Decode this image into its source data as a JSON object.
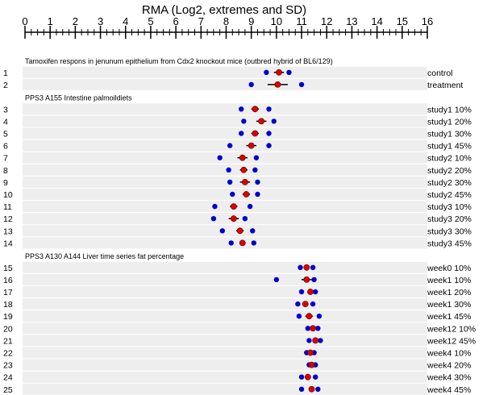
{
  "chart_data": {
    "type": "scatter",
    "title": "RMA (Log2, extremes and SD)",
    "xlim": [
      0,
      16
    ],
    "xticks": [
      "0",
      "1",
      "2",
      "3",
      "4",
      "5",
      "6",
      "7",
      "8",
      "9",
      "10",
      "11",
      "12",
      "13",
      "14",
      "15",
      "16"
    ],
    "colors": {
      "extreme": "#0000cc",
      "mean": "#dd0000",
      "band": "#eeeeee"
    },
    "groups": [
      {
        "title": "Tamoxifen respons in jenunum epithelium from Cdx2 knockout mice (outbred hybrid of BL6/129)",
        "rows": [
          {
            "num": "1",
            "label": "control",
            "min": 9.6,
            "max": 10.5,
            "mean": 10.1,
            "sd": 0.2
          },
          {
            "num": "2",
            "label": "treatment",
            "min": 9.0,
            "max": 11.0,
            "mean": 10.05,
            "sd": 0.4
          }
        ]
      },
      {
        "title": "PPS3 A155 Intestine palmoildiets",
        "rows": [
          {
            "num": "3",
            "label": "study1 10%",
            "min": 8.6,
            "max": 9.7,
            "mean": 9.15,
            "sd": 0.15
          },
          {
            "num": "4",
            "label": "study1 20%",
            "min": 8.7,
            "max": 9.9,
            "mean": 9.4,
            "sd": 0.2
          },
          {
            "num": "5",
            "label": "study1 30%",
            "min": 8.6,
            "max": 9.7,
            "mean": 9.15,
            "sd": 0.15
          },
          {
            "num": "6",
            "label": "study1 45%",
            "min": 8.15,
            "max": 9.7,
            "mean": 9.0,
            "sd": 0.2
          },
          {
            "num": "7",
            "label": "study2 10%",
            "min": 7.75,
            "max": 9.2,
            "mean": 8.65,
            "sd": 0.2
          },
          {
            "num": "8",
            "label": "study2 20%",
            "min": 8.1,
            "max": 9.15,
            "mean": 8.7,
            "sd": 0.15
          },
          {
            "num": "9",
            "label": "study2 30%",
            "min": 8.15,
            "max": 9.25,
            "mean": 8.75,
            "sd": 0.2
          },
          {
            "num": "10",
            "label": "study2 45%",
            "min": 8.25,
            "max": 9.25,
            "mean": 8.8,
            "sd": 0.15
          },
          {
            "num": "11",
            "label": "study3 10%",
            "min": 7.55,
            "max": 8.95,
            "mean": 8.3,
            "sd": 0.15
          },
          {
            "num": "12",
            "label": "study3 20%",
            "min": 7.5,
            "max": 8.75,
            "mean": 8.3,
            "sd": 0.2
          },
          {
            "num": "13",
            "label": "study3 30%",
            "min": 7.85,
            "max": 9.05,
            "mean": 8.55,
            "sd": 0.15
          },
          {
            "num": "14",
            "label": "study3 45%",
            "min": 8.2,
            "max": 9.1,
            "mean": 8.65,
            "sd": 0.1
          }
        ]
      },
      {
        "title": "PPS3 A130 A144 Liver time series fat percentage",
        "rows": [
          {
            "num": "15",
            "label": "week0 10%",
            "min": 10.95,
            "max": 11.45,
            "mean": 11.2,
            "sd": 0.1
          },
          {
            "num": "16",
            "label": "week1 10%",
            "min": 10.0,
            "max": 11.5,
            "mean": 11.2,
            "sd": 0.2
          },
          {
            "num": "17",
            "label": "week1 20%",
            "min": 11.0,
            "max": 11.55,
            "mean": 11.35,
            "sd": 0.1
          },
          {
            "num": "18",
            "label": "week1 30%",
            "min": 10.85,
            "max": 11.45,
            "mean": 11.15,
            "sd": 0.1
          },
          {
            "num": "19",
            "label": "week1 45%",
            "min": 10.9,
            "max": 11.7,
            "mean": 11.3,
            "sd": 0.15
          },
          {
            "num": "20",
            "label": "week12 10%",
            "min": 11.25,
            "max": 11.65,
            "mean": 11.45,
            "sd": 0.1
          },
          {
            "num": "21",
            "label": "week12 45%",
            "min": 11.3,
            "max": 11.75,
            "mean": 11.55,
            "sd": 0.1
          },
          {
            "num": "22",
            "label": "week4 10%",
            "min": 11.2,
            "max": 11.5,
            "mean": 11.35,
            "sd": 0.05
          },
          {
            "num": "23",
            "label": "week4 20%",
            "min": 11.3,
            "max": 11.55,
            "mean": 11.4,
            "sd": 0.05
          },
          {
            "num": "24",
            "label": "week4 30%",
            "min": 11.0,
            "max": 11.55,
            "mean": 11.25,
            "sd": 0.1
          },
          {
            "num": "25",
            "label": "week4 45%",
            "min": 11.0,
            "max": 11.65,
            "mean": 11.4,
            "sd": 0.1
          }
        ]
      }
    ]
  }
}
